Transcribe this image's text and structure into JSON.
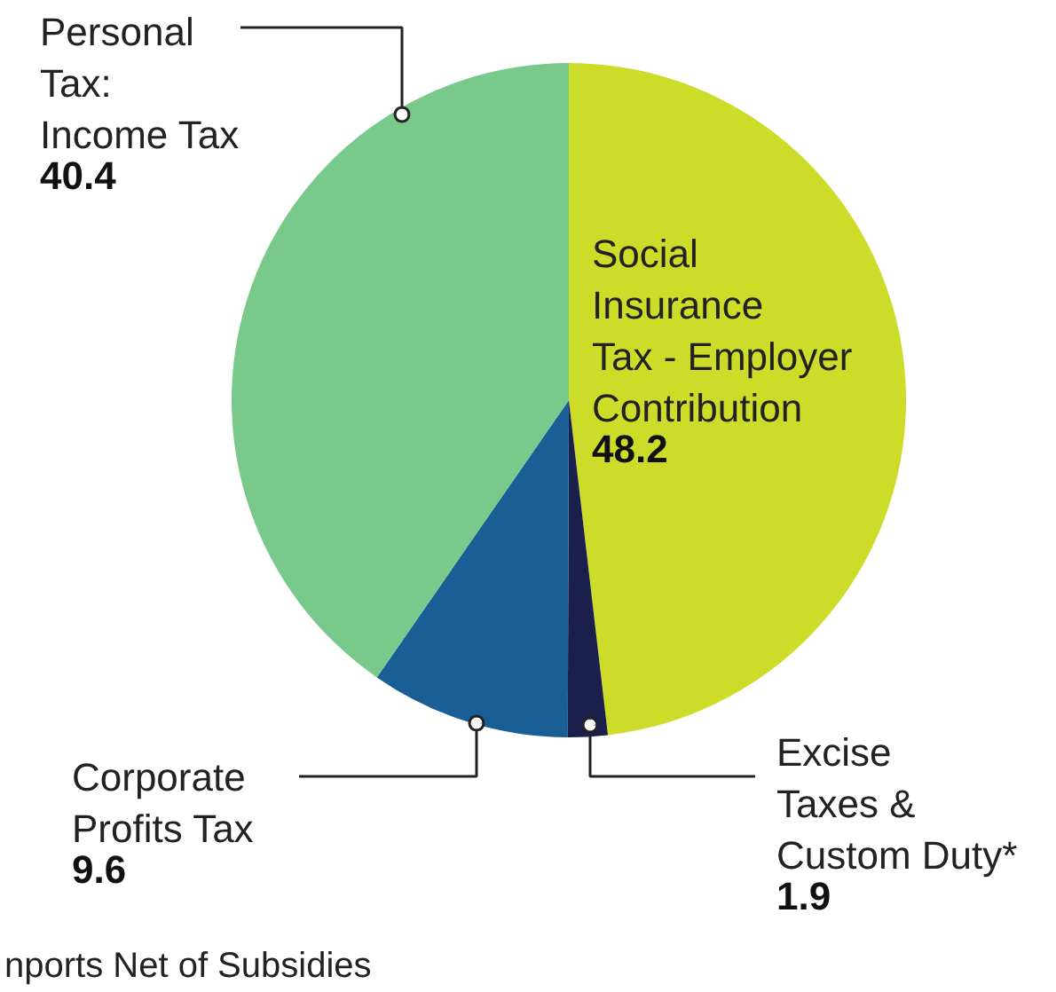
{
  "chart_data": {
    "type": "pie",
    "categories": [
      "Social\nInsurance\nTax - Employer\nContribution",
      "Excise\nTaxes &\nCustom Duty*",
      "Corporate\nProfits Tax",
      "Personal\nTax:\nIncome Tax"
    ],
    "values": [
      48.2,
      1.9,
      9.6,
      40.4
    ],
    "colors": [
      "#cddc29",
      "#1b1f4b",
      "#1a5e96",
      "#79c98d"
    ],
    "data_labels": true,
    "annotations": [
      "nports Net of Subsidies"
    ]
  }
}
